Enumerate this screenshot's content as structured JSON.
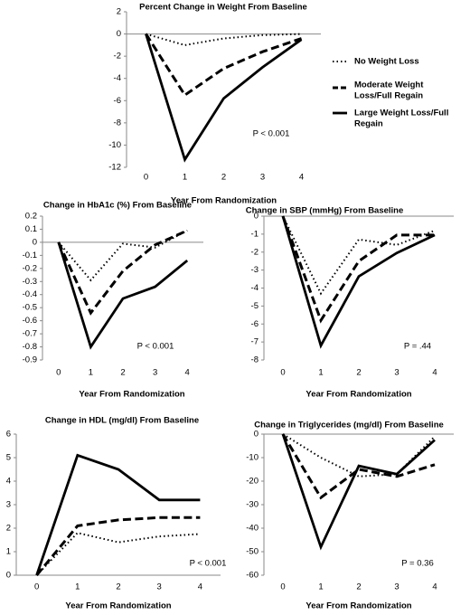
{
  "legend": {
    "placement": "right of top chart",
    "entries": [
      {
        "series": "none",
        "label_lines": [
          "No Weight Loss"
        ],
        "style": "dotted"
      },
      {
        "series": "moderate",
        "label_lines": [
          "Moderate Weight",
          "Loss/Full Regain"
        ],
        "style": "dashed"
      },
      {
        "series": "large",
        "label_lines": [
          "Large Weight Loss/Full",
          "Regain"
        ],
        "style": "solid"
      }
    ]
  },
  "chart_data": [
    {
      "id": "weight",
      "type": "line",
      "title": "Percent Change in Weight  From Baseline",
      "xlabel": "Year From Randomization",
      "ylabel": "",
      "x": [
        0,
        1,
        2,
        3,
        4
      ],
      "xlim": [
        -0.5,
        4.5
      ],
      "ylim": [
        -12,
        2
      ],
      "yticks": [
        2,
        0,
        -2,
        -4,
        -6,
        -8,
        -10,
        -12
      ],
      "xtick_row": "bottom",
      "grid": false,
      "annotation": "P < 0.001",
      "series": [
        {
          "key": "none",
          "values": [
            0,
            -1.0,
            -0.4,
            -0.1,
            0
          ]
        },
        {
          "key": "moderate",
          "values": [
            0,
            -5.5,
            -3.1,
            -1.6,
            -0.4
          ]
        },
        {
          "key": "large",
          "values": [
            0,
            -11.3,
            -5.8,
            -3.0,
            -0.5
          ]
        }
      ]
    },
    {
      "id": "hba1c",
      "type": "line",
      "title": "Change in HbA1c (%) From Baseline",
      "xlabel": "Year From Randomization",
      "ylabel": "",
      "x": [
        0,
        1,
        2,
        3,
        4
      ],
      "xlim": [
        -0.5,
        4.5
      ],
      "ylim": [
        -0.9,
        0.2
      ],
      "yticks": [
        0.2,
        0.1,
        0,
        -0.1,
        -0.2,
        -0.3,
        -0.4,
        -0.5,
        -0.6,
        -0.7,
        -0.8,
        -0.9
      ],
      "xtick_row": "bottom",
      "grid": false,
      "annotation": "P < 0.001",
      "series": [
        {
          "key": "none",
          "values": [
            0,
            -0.29,
            -0.01,
            -0.04,
            0.09
          ]
        },
        {
          "key": "moderate",
          "values": [
            0,
            -0.54,
            -0.22,
            -0.02,
            0.09
          ]
        },
        {
          "key": "large",
          "values": [
            0,
            -0.8,
            -0.43,
            -0.34,
            -0.14
          ]
        }
      ]
    },
    {
      "id": "sbp",
      "type": "line",
      "title": "Change in SBP (mmHg)  From Baseline",
      "xlabel": "Year From Randomization",
      "ylabel": "",
      "x": [
        0,
        1,
        2,
        3,
        4
      ],
      "xlim": [
        -0.5,
        4.5
      ],
      "ylim": [
        -8,
        0
      ],
      "yticks": [
        0,
        -1,
        -2,
        -3,
        -4,
        -5,
        -6,
        -7,
        -8
      ],
      "xtick_row": "bottom",
      "grid": false,
      "annotation": "P = .44",
      "series": [
        {
          "key": "none",
          "values": [
            0,
            -4.3,
            -1.3,
            -1.6,
            -0.8
          ]
        },
        {
          "key": "moderate",
          "values": [
            0,
            -5.8,
            -2.5,
            -1.05,
            -1.05
          ]
        },
        {
          "key": "large",
          "values": [
            0,
            -7.2,
            -3.35,
            -2.05,
            -1.05
          ]
        }
      ]
    },
    {
      "id": "hdl",
      "type": "line",
      "title": "Change in HDL (mg/dl) From Baseline",
      "xlabel": "Year From Randomization",
      "ylabel": "",
      "x": [
        0,
        1,
        2,
        3,
        4
      ],
      "xlim": [
        -0.5,
        4.5
      ],
      "ylim": [
        0,
        6
      ],
      "yticks": [
        6,
        5,
        4,
        3,
        2,
        1,
        0
      ],
      "xtick_row": "bottom",
      "grid": false,
      "annotation": "P < 0.001",
      "series": [
        {
          "key": "none",
          "values": [
            0,
            1.8,
            1.4,
            1.65,
            1.75
          ]
        },
        {
          "key": "moderate",
          "values": [
            0,
            2.1,
            2.35,
            2.45,
            2.45
          ]
        },
        {
          "key": "large",
          "values": [
            0,
            5.1,
            4.5,
            3.2,
            3.2
          ]
        }
      ]
    },
    {
      "id": "tg",
      "type": "line",
      "title": "Change in Triglycerides (mg/dl)  From Baseline",
      "xlabel": "Year From Randomization",
      "ylabel": "",
      "x": [
        0,
        1,
        2,
        3,
        4
      ],
      "xlim": [
        -0.5,
        4.5
      ],
      "ylim": [
        -60,
        0
      ],
      "yticks": [
        0,
        -10,
        -20,
        -30,
        -40,
        -50,
        -60
      ],
      "xtick_row": "bottom",
      "grid": false,
      "annotation": "P = 0.36",
      "series": [
        {
          "key": "none",
          "values": [
            0,
            -10,
            -18,
            -17,
            -1
          ]
        },
        {
          "key": "moderate",
          "values": [
            0,
            -27,
            -15,
            -18,
            -13
          ]
        },
        {
          "key": "large",
          "values": [
            0,
            -48,
            -13.5,
            -17,
            -2.5
          ]
        }
      ]
    }
  ]
}
